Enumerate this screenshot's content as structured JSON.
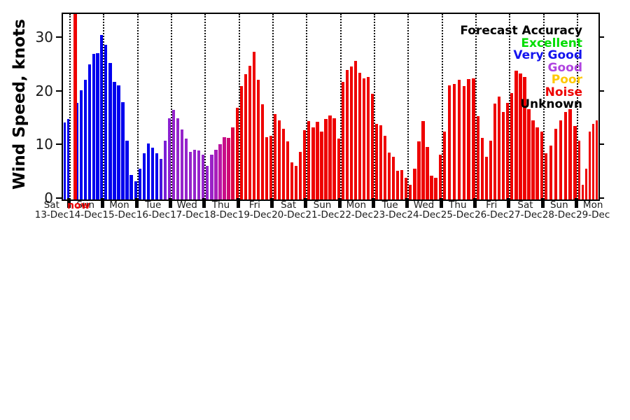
{
  "chart_data": {
    "type": "bar",
    "title": "",
    "ylabel": "Wind Speed, knots",
    "xlabel": "",
    "ylim": [
      0,
      34.6
    ],
    "yticks": [
      0,
      10,
      20,
      30
    ],
    "grid": "vertical dotted lines at each midnight",
    "legend_position": "top-right inside plot, text-only right-aligned",
    "legend": {
      "title": "Forecast Accuracy",
      "title_color": "#000000",
      "entries": [
        {
          "label": "Excellent",
          "color": "#00dd00"
        },
        {
          "label": "Very Good",
          "color": "#1414ee"
        },
        {
          "label": "Good",
          "color": "#b044e0"
        },
        {
          "label": "Poor",
          "color": "#ffc800"
        },
        {
          "label": "Noise",
          "color": "#ee0000"
        },
        {
          "label": "Unknown",
          "color": "#000000"
        }
      ]
    },
    "now_marker": {
      "label": "now",
      "color": "#ee0000",
      "position": "just after midnight 14-Dec"
    },
    "days": [
      {
        "day": "Sat",
        "date": "13-Dec",
        "color": "#0000ee",
        "values": [
          14.3,
          15.0
        ]
      },
      {
        "day": "Sun",
        "date": "14-Dec",
        "color": "#0000ee",
        "values": [
          18.0,
          20.4,
          22.3,
          25.2,
          27.2,
          27.3,
          30.7
        ]
      },
      {
        "day": "Mon",
        "date": "15-Dec",
        "color": "#0000ee",
        "values": [
          28.9,
          25.4,
          22.0,
          21.3,
          18.1,
          11.0,
          4.6,
          3.4
        ]
      },
      {
        "day": "Tue",
        "date": "16-Dec",
        "values": [
          5.8,
          8.6,
          10.4,
          9.7,
          8.6,
          7.6,
          11.0,
          15.2
        ],
        "colors": [
          "#0000ee",
          "#0000ee",
          "#0000ee",
          "#0000ee",
          "#0000ee",
          "#4413de",
          "#7a1fd6",
          "#8c22d2"
        ]
      },
      {
        "day": "Wed",
        "date": "17-Dec",
        "color": "#9524cb",
        "values": [
          16.7,
          15.2,
          13.0,
          11.3,
          8.9,
          9.3,
          9.1,
          8.4
        ]
      },
      {
        "day": "Thu",
        "date": "18-Dec",
        "values": [
          6.3,
          8.4,
          9.3,
          10.3,
          11.6,
          11.5,
          13.4,
          17.1
        ],
        "colors": [
          "#9524cb",
          "#9a22c6",
          "#a81dbb",
          "#bb16a4",
          "#c70e8a",
          "#ce0a72",
          "#dc0547",
          "#ee0000"
        ]
      },
      {
        "day": "Fri",
        "date": "19-Dec",
        "color": "#ee0000",
        "values": [
          21.2,
          23.4,
          25.0,
          27.6,
          22.3,
          17.7,
          11.6,
          11.9
        ]
      },
      {
        "day": "Sat",
        "date": "20-Dec",
        "color": "#ee0000",
        "values": [
          15.9,
          14.8,
          13.2,
          10.9,
          6.9,
          6.3,
          8.9,
          12.9
        ]
      },
      {
        "day": "Sun",
        "date": "21-Dec",
        "color": "#ee0000",
        "values": [
          14.6,
          13.5,
          14.5,
          12.6,
          15.0,
          15.7,
          15.2,
          11.3
        ]
      },
      {
        "day": "Mon",
        "date": "22-Dec",
        "color": "#ee0000",
        "values": [
          22.0,
          24.2,
          24.8,
          25.9,
          23.6,
          22.6,
          22.8,
          19.7
        ]
      },
      {
        "day": "Tue",
        "date": "23-Dec",
        "color": "#ee0000",
        "values": [
          14.1,
          13.8,
          11.9,
          8.7,
          7.9,
          5.4,
          5.5,
          4.1
        ]
      },
      {
        "day": "Wed",
        "date": "24-Dec",
        "color": "#ee0000",
        "values": [
          2.8,
          5.7,
          10.8,
          14.6,
          9.8,
          4.5,
          4.0,
          8.4
        ]
      },
      {
        "day": "Thu",
        "date": "25-Dec",
        "color": "#ee0000",
        "values": [
          12.6,
          21.3,
          21.5,
          22.3,
          21.2,
          22.5,
          22.6
        ]
      },
      {
        "day": "Fri",
        "date": "26-Dec",
        "color": "#ee0000",
        "values": [
          15.6,
          11.5,
          7.9,
          11.0,
          17.9,
          19.2,
          16.3,
          18.0
        ]
      },
      {
        "day": "Sat",
        "date": "27-Dec",
        "color": "#ee0000",
        "values": [
          19.8,
          24.0,
          23.5,
          22.9,
          16.9,
          14.7,
          13.5,
          12.6
        ]
      },
      {
        "day": "Sun",
        "date": "28-Dec",
        "color": "#ee0000",
        "values": [
          8.6,
          10.0,
          13.2,
          14.7,
          16.3,
          16.9,
          13.7
        ]
      },
      {
        "day": "Mon",
        "date": "29-Dec",
        "color": "#ee0000",
        "values": [
          11.0,
          2.8,
          5.8,
          12.6,
          14.1,
          14.8
        ]
      }
    ]
  }
}
